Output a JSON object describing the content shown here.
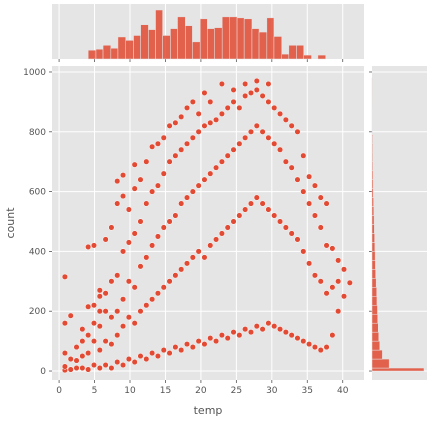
{
  "chart_data": {
    "type": "scatter",
    "style": "ggplot",
    "xlabel": "temp",
    "ylabel": "count",
    "xlim": [
      -1,
      43
    ],
    "ylim": [
      -30,
      1020
    ],
    "xticks": [
      0,
      5,
      10,
      15,
      20,
      25,
      30,
      35,
      40
    ],
    "yticks": [
      0,
      200,
      400,
      600,
      800,
      1000
    ],
    "grid": true,
    "marginals": {
      "top": {
        "type": "histogram",
        "bins": [
          [
            4.1,
            5.2,
            0.18
          ],
          [
            5.2,
            6.2,
            0.2
          ],
          [
            6.2,
            7.3,
            0.28
          ],
          [
            7.3,
            8.3,
            0.22
          ],
          [
            8.3,
            9.4,
            0.45
          ],
          [
            9.4,
            10.5,
            0.38
          ],
          [
            10.5,
            11.5,
            0.48
          ],
          [
            11.5,
            12.6,
            0.7
          ],
          [
            12.6,
            13.6,
            0.6
          ],
          [
            13.6,
            14.6,
            1.0
          ],
          [
            14.6,
            15.7,
            0.48
          ],
          [
            15.7,
            16.7,
            0.62
          ],
          [
            16.7,
            17.8,
            0.86
          ],
          [
            17.8,
            18.8,
            0.68
          ],
          [
            18.8,
            19.9,
            0.35
          ],
          [
            19.9,
            20.9,
            0.82
          ],
          [
            20.9,
            21.9,
            0.62
          ],
          [
            21.9,
            23.0,
            0.64
          ],
          [
            23.0,
            24.0,
            0.86
          ],
          [
            24.0,
            25.1,
            0.86
          ],
          [
            25.1,
            26.1,
            0.84
          ],
          [
            26.1,
            27.2,
            0.82
          ],
          [
            27.2,
            28.2,
            0.62
          ],
          [
            28.2,
            29.3,
            0.55
          ],
          [
            29.3,
            30.3,
            0.84
          ],
          [
            30.3,
            31.4,
            0.46
          ],
          [
            31.4,
            32.4,
            0.1
          ],
          [
            32.4,
            33.5,
            0.28
          ],
          [
            33.5,
            34.5,
            0.28
          ],
          [
            34.5,
            35.6,
            0.08
          ],
          [
            36.5,
            37.6,
            0.08
          ]
        ]
      },
      "right": {
        "type": "histogram",
        "bins": [
          [
            0,
            10,
            1.0
          ],
          [
            10,
            40,
            0.33
          ],
          [
            40,
            70,
            0.2
          ],
          [
            70,
            100,
            0.15
          ],
          [
            100,
            130,
            0.13
          ],
          [
            130,
            160,
            0.12
          ],
          [
            160,
            190,
            0.11
          ],
          [
            190,
            220,
            0.105
          ],
          [
            220,
            250,
            0.095
          ],
          [
            250,
            280,
            0.09
          ],
          [
            280,
            310,
            0.08
          ],
          [
            310,
            340,
            0.07
          ],
          [
            340,
            370,
            0.065
          ],
          [
            370,
            400,
            0.06
          ],
          [
            400,
            430,
            0.055
          ],
          [
            430,
            460,
            0.05
          ],
          [
            460,
            490,
            0.045
          ],
          [
            490,
            520,
            0.04
          ],
          [
            520,
            550,
            0.035
          ],
          [
            550,
            580,
            0.03
          ],
          [
            580,
            610,
            0.025
          ],
          [
            610,
            640,
            0.022
          ],
          [
            640,
            670,
            0.02
          ],
          [
            670,
            700,
            0.017
          ],
          [
            700,
            730,
            0.015
          ],
          [
            730,
            760,
            0.013
          ],
          [
            760,
            790,
            0.011
          ],
          [
            790,
            820,
            0.009
          ],
          [
            820,
            850,
            0.007
          ],
          [
            850,
            880,
            0.006
          ],
          [
            880,
            910,
            0.004
          ],
          [
            910,
            940,
            0.003
          ],
          [
            940,
            980,
            0.002
          ]
        ]
      }
    },
    "series": [
      {
        "values": [
          [
            0.82,
            3
          ],
          [
            0.82,
            15
          ],
          [
            0.82,
            60
          ],
          [
            0.82,
            160
          ],
          [
            0.82,
            315
          ],
          [
            1.64,
            5
          ],
          [
            1.64,
            40
          ],
          [
            1.64,
            185
          ],
          [
            2.46,
            10
          ],
          [
            2.46,
            35
          ],
          [
            2.46,
            80
          ],
          [
            3.28,
            10
          ],
          [
            3.28,
            50
          ],
          [
            3.28,
            100
          ],
          [
            3.28,
            140
          ],
          [
            4.1,
            5
          ],
          [
            4.1,
            60
          ],
          [
            4.1,
            120
          ],
          [
            4.1,
            215
          ],
          [
            4.1,
            415
          ],
          [
            4.92,
            20
          ],
          [
            4.92,
            100
          ],
          [
            4.92,
            160
          ],
          [
            4.92,
            220
          ],
          [
            4.92,
            420
          ],
          [
            5.74,
            10
          ],
          [
            5.74,
            70
          ],
          [
            5.74,
            150
          ],
          [
            5.74,
            200
          ],
          [
            5.74,
            250
          ],
          [
            5.74,
            270
          ],
          [
            6.56,
            20
          ],
          [
            6.56,
            100
          ],
          [
            6.56,
            200
          ],
          [
            6.56,
            260
          ],
          [
            6.56,
            440
          ],
          [
            7.38,
            10
          ],
          [
            7.38,
            90
          ],
          [
            7.38,
            180
          ],
          [
            7.38,
            300
          ],
          [
            7.38,
            480
          ],
          [
            8.2,
            30
          ],
          [
            8.2,
            120
          ],
          [
            8.2,
            200
          ],
          [
            8.2,
            320
          ],
          [
            8.2,
            560
          ],
          [
            8.2,
            635
          ],
          [
            9.02,
            20
          ],
          [
            9.02,
            150
          ],
          [
            9.02,
            240
          ],
          [
            9.02,
            400
          ],
          [
            9.02,
            585
          ],
          [
            9.02,
            655
          ],
          [
            9.84,
            40
          ],
          [
            9.84,
            180
          ],
          [
            9.84,
            300
          ],
          [
            9.84,
            430
          ],
          [
            9.84,
            540
          ],
          [
            10.66,
            30
          ],
          [
            10.66,
            160
          ],
          [
            10.66,
            280
          ],
          [
            10.66,
            460
          ],
          [
            10.66,
            610
          ],
          [
            10.66,
            690
          ],
          [
            11.48,
            50
          ],
          [
            11.48,
            200
          ],
          [
            11.48,
            350
          ],
          [
            11.48,
            500
          ],
          [
            11.48,
            640
          ],
          [
            12.3,
            40
          ],
          [
            12.3,
            220
          ],
          [
            12.3,
            380
          ],
          [
            12.3,
            560
          ],
          [
            12.3,
            700
          ],
          [
            13.12,
            60
          ],
          [
            13.12,
            240
          ],
          [
            13.12,
            420
          ],
          [
            13.12,
            600
          ],
          [
            13.12,
            750
          ],
          [
            13.94,
            50
          ],
          [
            13.94,
            260
          ],
          [
            13.94,
            450
          ],
          [
            13.94,
            620
          ],
          [
            13.94,
            760
          ],
          [
            14.76,
            70
          ],
          [
            14.76,
            280
          ],
          [
            14.76,
            480
          ],
          [
            14.76,
            660
          ],
          [
            14.76,
            780
          ],
          [
            15.58,
            60
          ],
          [
            15.58,
            300
          ],
          [
            15.58,
            500
          ],
          [
            15.58,
            700
          ],
          [
            15.58,
            820
          ],
          [
            16.4,
            80
          ],
          [
            16.4,
            320
          ],
          [
            16.4,
            520
          ],
          [
            16.4,
            720
          ],
          [
            16.4,
            830
          ],
          [
            17.22,
            70
          ],
          [
            17.22,
            340
          ],
          [
            17.22,
            560
          ],
          [
            17.22,
            740
          ],
          [
            17.22,
            850
          ],
          [
            18.04,
            90
          ],
          [
            18.04,
            360
          ],
          [
            18.04,
            580
          ],
          [
            18.04,
            760
          ],
          [
            18.04,
            880
          ],
          [
            18.86,
            80
          ],
          [
            18.86,
            380
          ],
          [
            18.86,
            600
          ],
          [
            18.86,
            780
          ],
          [
            18.86,
            900
          ],
          [
            19.68,
            100
          ],
          [
            19.68,
            400
          ],
          [
            19.68,
            620
          ],
          [
            19.68,
            800
          ],
          [
            19.68,
            860
          ],
          [
            20.5,
            90
          ],
          [
            20.5,
            380
          ],
          [
            20.5,
            640
          ],
          [
            20.5,
            820
          ],
          [
            20.5,
            930
          ],
          [
            21.32,
            110
          ],
          [
            21.32,
            420
          ],
          [
            21.32,
            660
          ],
          [
            21.32,
            830
          ],
          [
            21.32,
            900
          ],
          [
            22.14,
            100
          ],
          [
            22.14,
            440
          ],
          [
            22.14,
            680
          ],
          [
            22.14,
            840
          ],
          [
            22.96,
            120
          ],
          [
            22.96,
            460
          ],
          [
            22.96,
            700
          ],
          [
            22.96,
            860
          ],
          [
            22.96,
            960
          ],
          [
            23.78,
            110
          ],
          [
            23.78,
            480
          ],
          [
            23.78,
            720
          ],
          [
            23.78,
            880
          ],
          [
            24.6,
            130
          ],
          [
            24.6,
            500
          ],
          [
            24.6,
            740
          ],
          [
            24.6,
            900
          ],
          [
            24.6,
            940
          ],
          [
            25.42,
            120
          ],
          [
            25.42,
            520
          ],
          [
            25.42,
            760
          ],
          [
            25.42,
            880
          ],
          [
            26.24,
            140
          ],
          [
            26.24,
            540
          ],
          [
            26.24,
            780
          ],
          [
            26.24,
            920
          ],
          [
            26.24,
            960
          ],
          [
            27.06,
            130
          ],
          [
            27.06,
            560
          ],
          [
            27.06,
            800
          ],
          [
            27.06,
            930
          ],
          [
            27.88,
            150
          ],
          [
            27.88,
            580
          ],
          [
            27.88,
            820
          ],
          [
            27.88,
            940
          ],
          [
            27.88,
            970
          ],
          [
            28.7,
            140
          ],
          [
            28.7,
            560
          ],
          [
            28.7,
            800
          ],
          [
            28.7,
            920
          ],
          [
            29.52,
            160
          ],
          [
            29.52,
            540
          ],
          [
            29.52,
            780
          ],
          [
            29.52,
            900
          ],
          [
            29.52,
            960
          ],
          [
            30.34,
            150
          ],
          [
            30.34,
            520
          ],
          [
            30.34,
            760
          ],
          [
            30.34,
            880
          ],
          [
            31.16,
            140
          ],
          [
            31.16,
            500
          ],
          [
            31.16,
            740
          ],
          [
            31.16,
            860
          ],
          [
            31.98,
            130
          ],
          [
            31.98,
            480
          ],
          [
            31.98,
            700
          ],
          [
            31.98,
            840
          ],
          [
            32.8,
            120
          ],
          [
            32.8,
            460
          ],
          [
            32.8,
            680
          ],
          [
            32.8,
            820
          ],
          [
            33.62,
            110
          ],
          [
            33.62,
            440
          ],
          [
            33.62,
            640
          ],
          [
            33.62,
            800
          ],
          [
            34.44,
            100
          ],
          [
            34.44,
            400
          ],
          [
            34.44,
            600
          ],
          [
            34.44,
            720
          ],
          [
            35.26,
            90
          ],
          [
            35.26,
            360
          ],
          [
            35.26,
            560
          ],
          [
            35.26,
            650
          ],
          [
            36.08,
            80
          ],
          [
            36.08,
            320
          ],
          [
            36.08,
            520
          ],
          [
            36.08,
            620
          ],
          [
            36.9,
            70
          ],
          [
            36.9,
            300
          ],
          [
            36.9,
            480
          ],
          [
            36.9,
            580
          ],
          [
            37.72,
            80
          ],
          [
            37.72,
            260
          ],
          [
            37.72,
            420
          ],
          [
            37.72,
            560
          ],
          [
            38.54,
            120
          ],
          [
            38.54,
            280
          ],
          [
            38.54,
            410
          ],
          [
            39.36,
            200
          ],
          [
            39.36,
            300
          ],
          [
            39.36,
            370
          ],
          [
            40.18,
            250
          ],
          [
            40.18,
            340
          ],
          [
            41.0,
            295
          ]
        ]
      }
    ]
  }
}
